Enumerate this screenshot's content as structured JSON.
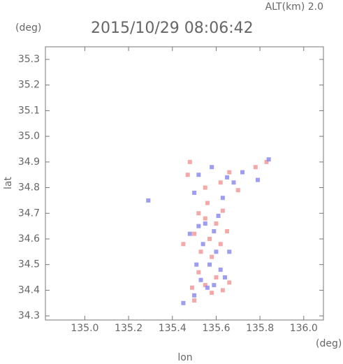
{
  "chart_data": {
    "type": "scatter",
    "title": "2015/10/29 08:06:42",
    "annotation": "ALT(km) 2.0",
    "x_unit": "(deg)",
    "y_unit": "(deg)",
    "xlabel": "lon",
    "ylabel": "lat",
    "xlim": [
      134.82,
      136.09
    ],
    "ylim": [
      34.284,
      35.349
    ],
    "xticks": [
      {
        "value": 135,
        "label": "135.0"
      },
      135.2,
      135.4,
      135.6,
      135.8,
      {
        "value": 136,
        "label": "136.0"
      }
    ],
    "yticks": [
      34.3,
      34.4,
      34.5,
      34.6,
      34.7,
      34.8,
      34.9,
      {
        "value": 35,
        "label": "35.0"
      },
      35.1,
      35.2,
      35.3
    ],
    "series": [
      {
        "color": "#f29a9a",
        "x": [
          135.52,
          135.55,
          135.6,
          135.63,
          135.5,
          135.57,
          135.62,
          135.65,
          135.53,
          135.58,
          135.52,
          135.6,
          135.55,
          135.63,
          135.49,
          135.58,
          135.66,
          135.5,
          135.47,
          135.55,
          135.62,
          135.7,
          135.78,
          135.83,
          135.48,
          135.66,
          135.56,
          135.45
        ],
        "values": [
          34.7,
          34.68,
          34.66,
          34.71,
          34.62,
          34.6,
          34.58,
          34.63,
          34.55,
          34.53,
          34.47,
          34.45,
          34.42,
          34.4,
          34.41,
          34.39,
          34.43,
          34.36,
          34.85,
          34.8,
          34.82,
          34.79,
          34.88,
          34.9,
          34.9,
          34.86,
          34.74,
          34.58
        ]
      },
      {
        "color": "#8c8cef",
        "x": [
          135.55,
          135.59,
          135.52,
          135.61,
          135.54,
          135.6,
          135.57,
          135.62,
          135.53,
          135.59,
          135.64,
          135.56,
          135.45,
          135.5,
          135.52,
          135.58,
          135.65,
          135.68,
          135.72,
          135.84,
          135.79,
          135.5,
          135.29,
          135.63,
          135.48,
          135.66,
          135.51
        ],
        "values": [
          34.66,
          34.63,
          34.65,
          34.69,
          34.58,
          34.55,
          34.5,
          34.48,
          34.44,
          34.42,
          34.45,
          34.41,
          34.35,
          34.38,
          34.85,
          34.88,
          34.84,
          34.82,
          34.86,
          34.91,
          34.83,
          34.78,
          34.75,
          34.76,
          34.62,
          34.55,
          34.5
        ]
      }
    ]
  }
}
